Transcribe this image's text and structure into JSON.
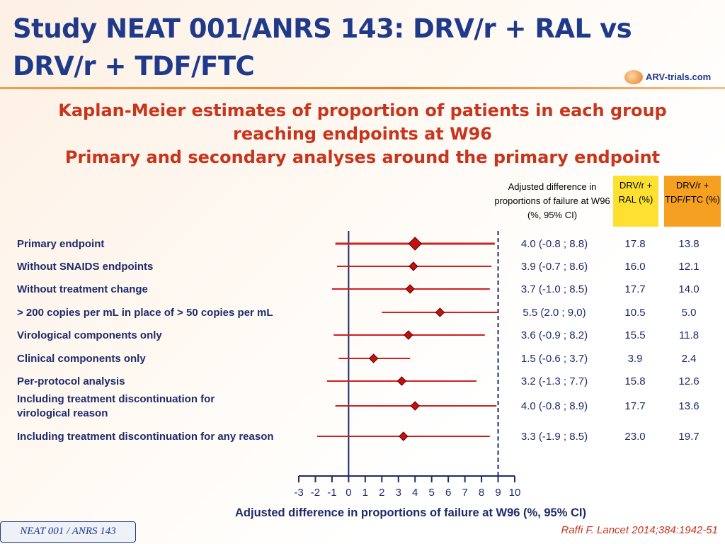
{
  "title": "Study NEAT 001/ANRS 143: DRV/r + RAL vs DRV/r + TDF/FTC",
  "logo": {
    "text": "ARV-trials.com",
    "icon": "logo-icon"
  },
  "subtitle": {
    "line1": "Kaplan-Meier estimates of proportion of patients in each group",
    "line2": "reaching endpoints at W96",
    "line3": "Primary and secondary analyses around the primary endpoint"
  },
  "headers": {
    "diff": "Adjusted difference in proportions of failure at W96 (%, 95% CI)",
    "ral": "DRV/r + RAL (%)",
    "tdf": "DRV/r + TDF/FTC (%)"
  },
  "colors": {
    "title": "#1f3a8a",
    "subtitle": "#c8341c",
    "ci_line": "#d02020",
    "point_fill": "#c41010",
    "ral_header": "#fde030",
    "tdf_header": "#f5a020"
  },
  "chart_data": {
    "type": "forest",
    "xlabel": "Adjusted difference in proportions of failure at W96 (%, 95% CI)",
    "xlim": [
      -3,
      10
    ],
    "xticks": [
      "-3",
      "-2",
      "-1",
      "0",
      "1",
      "2",
      "3",
      "4",
      "5",
      "6",
      "7",
      "8",
      "9",
      "10"
    ],
    "reference_lines": [
      0,
      9
    ],
    "rows": [
      {
        "label": "Primary endpoint",
        "est": 4.0,
        "lo": -0.8,
        "hi": 8.8,
        "ci_text": "4.0 (-0.8 ; 8.8)",
        "ral": "17.8",
        "tdf": "13.8"
      },
      {
        "label": "Without SNAIDS endpoints",
        "est": 3.9,
        "lo": -0.7,
        "hi": 8.6,
        "ci_text": "3.9 (-0.7 ; 8.6)",
        "ral": "16.0",
        "tdf": "12.1"
      },
      {
        "label": "Without treatment change",
        "est": 3.7,
        "lo": -1.0,
        "hi": 8.5,
        "ci_text": "3.7 (-1.0 ; 8.5)",
        "ral": "17.7",
        "tdf": "14.0"
      },
      {
        "label": "> 200 copies per mL in place of > 50 copies per mL",
        "est": 5.5,
        "lo": 2.0,
        "hi": 9.0,
        "ci_text": "5.5 (2.0 ; 9,0)",
        "ral": "10.5",
        "tdf": "5.0"
      },
      {
        "label": "Virological components only",
        "est": 3.6,
        "lo": -0.9,
        "hi": 8.2,
        "ci_text": "3.6 (-0.9 ; 8.2)",
        "ral": "15.5",
        "tdf": "11.8"
      },
      {
        "label": "Clinical components only",
        "est": 1.5,
        "lo": -0.6,
        "hi": 3.7,
        "ci_text": "1.5 (-0.6 ; 3.7)",
        "ral": "3.9",
        "tdf": "2.4"
      },
      {
        "label": "Per-protocol analysis",
        "est": 3.2,
        "lo": -1.3,
        "hi": 7.7,
        "ci_text": "3.2 (-1.3 ; 7.7)",
        "ral": "15.8",
        "tdf": "12.6"
      },
      {
        "label": "Including treatment discontinuation for virological reason",
        "est": 4.0,
        "lo": -0.8,
        "hi": 8.9,
        "ci_text": "4.0 (-0.8 ; 8.9)",
        "ral": "17.7",
        "tdf": "13.6"
      },
      {
        "label": "Including treatment discontinuation for any reason",
        "est": 3.3,
        "lo": -1.9,
        "hi": 8.5,
        "ci_text": "3.3 (-1.9 ; 8.5)",
        "ral": "23.0",
        "tdf": "19.7"
      }
    ]
  },
  "footer": {
    "badge": "NEAT 001 / ANRS 143",
    "citation": "Raffi F. Lancet 2014;384:1942-51"
  }
}
